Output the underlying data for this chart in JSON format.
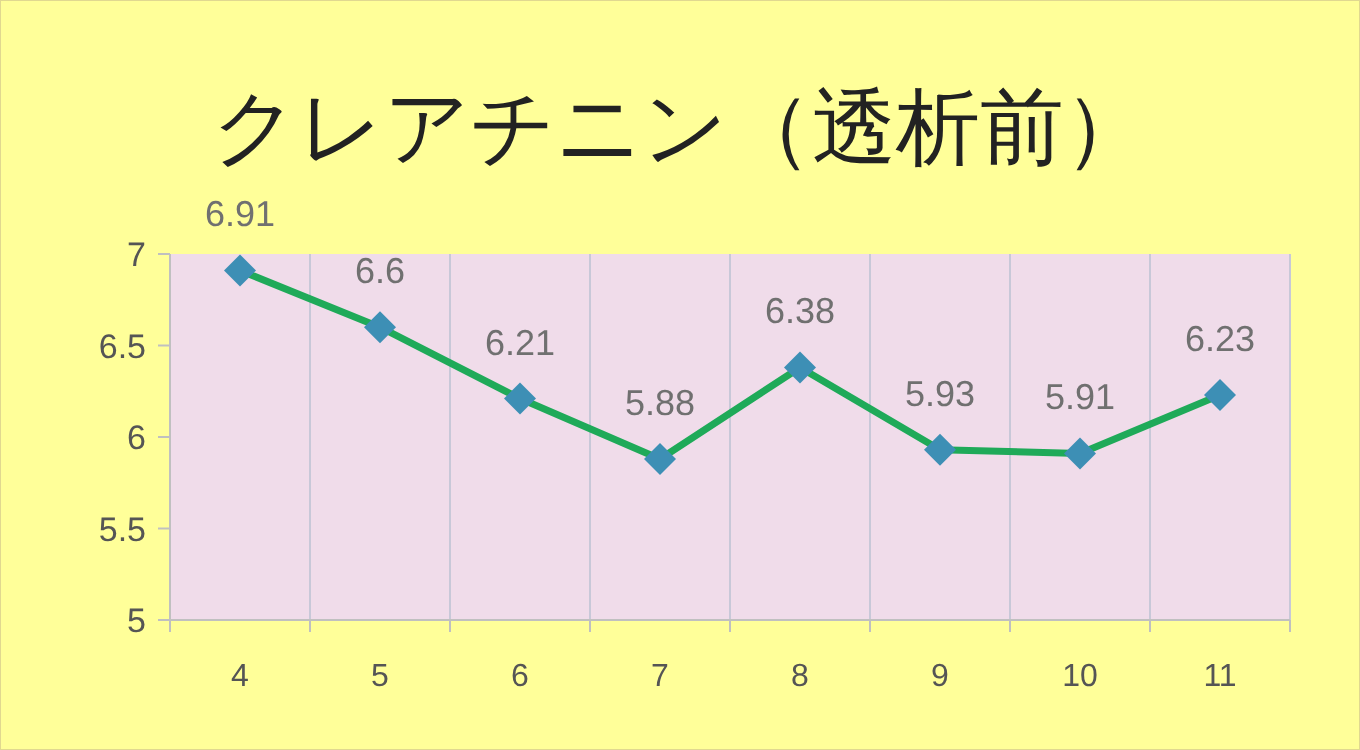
{
  "chart_data": {
    "type": "line",
    "title": "クレアチニン（透析前）",
    "categories": [
      "4",
      "5",
      "6",
      "7",
      "8",
      "9",
      "10",
      "11"
    ],
    "series": [
      {
        "color": "#1faa59",
        "values": [
          6.91,
          6.6,
          6.21,
          5.88,
          6.38,
          5.93,
          5.91,
          6.23
        ]
      }
    ],
    "ylim": [
      5,
      7
    ],
    "yticks": [
      5,
      5.5,
      6,
      6.5,
      7
    ],
    "grid": "x",
    "marker": "diamond",
    "line_style": "solid",
    "data_labels": true
  }
}
